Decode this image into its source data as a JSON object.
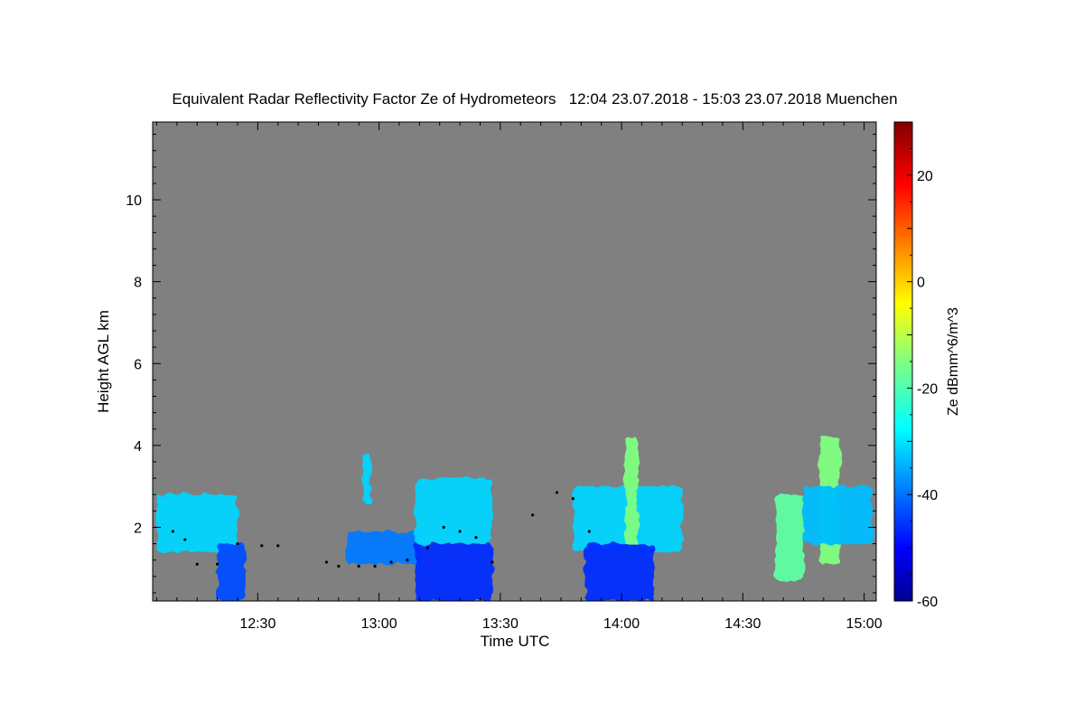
{
  "chart_data": {
    "type": "heatmap",
    "title": "Equivalent Radar Reflectivity Factor Ze of Hydrometeors   12:04 23.07.2018 - 15:03 23.07.2018 Muenchen",
    "xlabel": "Time UTC",
    "ylabel": "Height AGL km",
    "colorbar_label": "Ze dBmm^6/m^3",
    "x_range": [
      "12:04",
      "15:03"
    ],
    "ylim": [
      0.2,
      11.9
    ],
    "x_ticks": [
      "12:30",
      "13:00",
      "13:30",
      "14:00",
      "14:30",
      "15:00"
    ],
    "y_ticks": [
      2,
      4,
      6,
      8,
      10
    ],
    "colorbar_range": [
      -60,
      30
    ],
    "colorbar_ticks": [
      -60,
      -40,
      -20,
      0,
      20
    ],
    "colormap": "jet",
    "no_data_color": "#808080",
    "cloud_base_color": "#000000",
    "echo_regions": [
      {
        "t_start": "12:05",
        "t_end": "12:25",
        "base_km": 1.4,
        "top_km": 2.8,
        "ze_dbz": -30
      },
      {
        "t_start": "12:20",
        "t_end": "12:27",
        "base_km": 0.2,
        "top_km": 1.6,
        "ze_dbz": -42
      },
      {
        "t_start": "12:52",
        "t_end": "13:10",
        "base_km": 1.1,
        "top_km": 1.9,
        "ze_dbz": -38
      },
      {
        "t_start": "12:56",
        "t_end": "12:58",
        "base_km": 2.6,
        "top_km": 3.8,
        "ze_dbz": -30
      },
      {
        "t_start": "13:09",
        "t_end": "13:28",
        "base_km": 1.6,
        "top_km": 3.2,
        "ze_dbz": -30
      },
      {
        "t_start": "13:09",
        "t_end": "13:28",
        "base_km": 0.2,
        "top_km": 1.6,
        "ze_dbz": -45
      },
      {
        "t_start": "13:48",
        "t_end": "14:15",
        "base_km": 1.4,
        "top_km": 3.0,
        "ze_dbz": -30
      },
      {
        "t_start": "14:01",
        "t_end": "14:04",
        "base_km": 1.3,
        "top_km": 4.2,
        "ze_dbz": -15
      },
      {
        "t_start": "13:51",
        "t_end": "14:08",
        "base_km": 0.2,
        "top_km": 1.6,
        "ze_dbz": -45
      },
      {
        "t_start": "14:38",
        "t_end": "14:45",
        "base_km": 0.7,
        "top_km": 2.8,
        "ze_dbz": -18
      },
      {
        "t_start": "14:49",
        "t_end": "14:54",
        "base_km": 1.1,
        "top_km": 4.2,
        "ze_dbz": -15
      },
      {
        "t_start": "14:45",
        "t_end": "15:02",
        "base_km": 1.6,
        "top_km": 3.0,
        "ze_dbz": -32
      }
    ],
    "cloud_base_points": [
      {
        "t": "12:09",
        "h": 1.9
      },
      {
        "t": "12:12",
        "h": 1.7
      },
      {
        "t": "12:15",
        "h": 1.1
      },
      {
        "t": "12:20",
        "h": 1.1
      },
      {
        "t": "12:25",
        "h": 1.6
      },
      {
        "t": "12:31",
        "h": 1.55
      },
      {
        "t": "12:35",
        "h": 1.55
      },
      {
        "t": "12:47",
        "h": 1.15
      },
      {
        "t": "12:50",
        "h": 1.05
      },
      {
        "t": "12:55",
        "h": 1.05
      },
      {
        "t": "12:59",
        "h": 1.05
      },
      {
        "t": "13:03",
        "h": 1.15
      },
      {
        "t": "13:07",
        "h": 1.2
      },
      {
        "t": "13:12",
        "h": 1.5
      },
      {
        "t": "13:16",
        "h": 2.0
      },
      {
        "t": "13:20",
        "h": 1.9
      },
      {
        "t": "13:24",
        "h": 1.75
      },
      {
        "t": "13:28",
        "h": 1.15
      },
      {
        "t": "13:38",
        "h": 2.3
      },
      {
        "t": "13:44",
        "h": 2.85
      },
      {
        "t": "13:48",
        "h": 2.7
      },
      {
        "t": "13:52",
        "h": 1.9
      }
    ]
  }
}
